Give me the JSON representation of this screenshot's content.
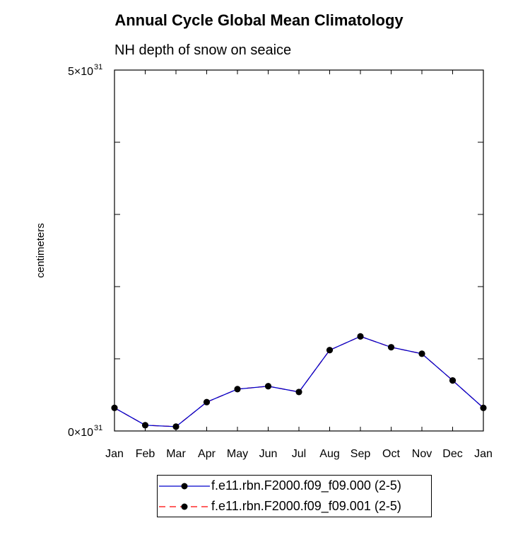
{
  "chart_data": {
    "type": "line",
    "title": "Annual Cycle Global Mean Climatology",
    "subtitle": "NH depth of snow on seaice",
    "xlabel": "",
    "ylabel": "centimeters",
    "categories": [
      "Jan",
      "Feb",
      "Mar",
      "Apr",
      "May",
      "Jun",
      "Jul",
      "Aug",
      "Sep",
      "Oct",
      "Nov",
      "Dec",
      "Jan"
    ],
    "ylim": [
      0,
      5e+31
    ],
    "ytick_labels": [
      {
        "value": 0,
        "base": "0×10",
        "exp": "31"
      },
      {
        "value": 5e+31,
        "base": "5×10",
        "exp": "31"
      }
    ],
    "series": [
      {
        "name": "f.e11.rbn.F2000.f09_f09.000 (2-5)",
        "color": "#0000cc",
        "dash": "solid",
        "values": [
          3.2e+30,
          8e+29,
          6e+29,
          4e+30,
          5.8e+30,
          6.2e+30,
          5.4e+30,
          1.12e+31,
          1.31e+31,
          1.16e+31,
          1.07e+31,
          7e+30,
          3.2e+30
        ]
      },
      {
        "name": "f.e11.rbn.F2000.f09_f09.001 (2-5)",
        "color": "#ff0000",
        "dash": "dashed",
        "values": [
          3.2e+30,
          8e+29,
          6e+29,
          4e+30,
          5.8e+30,
          6.2e+30,
          5.4e+30,
          1.12e+31,
          1.31e+31,
          1.16e+31,
          1.07e+31,
          7e+30,
          3.2e+30
        ]
      }
    ]
  }
}
